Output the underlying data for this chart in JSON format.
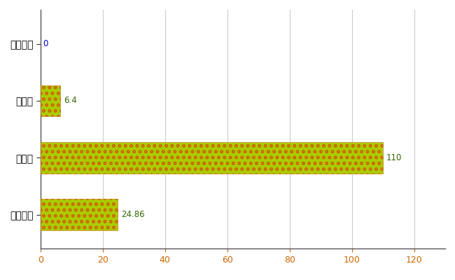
{
  "categories": [
    "真室川町",
    "県平均",
    "県最大",
    "全国平均"
  ],
  "values": [
    0,
    6.4,
    110,
    24.86
  ],
  "bar_color": "#AACC00",
  "bar_edge_color": "#CC6600",
  "label_color_zero": "#0000CC",
  "label_color_nonzero": "#336600",
  "xlim": [
    0,
    130
  ],
  "xticks": [
    0,
    20,
    40,
    60,
    80,
    100,
    120
  ],
  "grid_color": "#CCCCCC",
  "background_color": "#FFFFFF",
  "bar_height": 0.55,
  "value_labels": [
    "0",
    "6.4",
    "110",
    "24.86"
  ],
  "figsize": [
    6.5,
    4.0
  ],
  "dpi": 100
}
